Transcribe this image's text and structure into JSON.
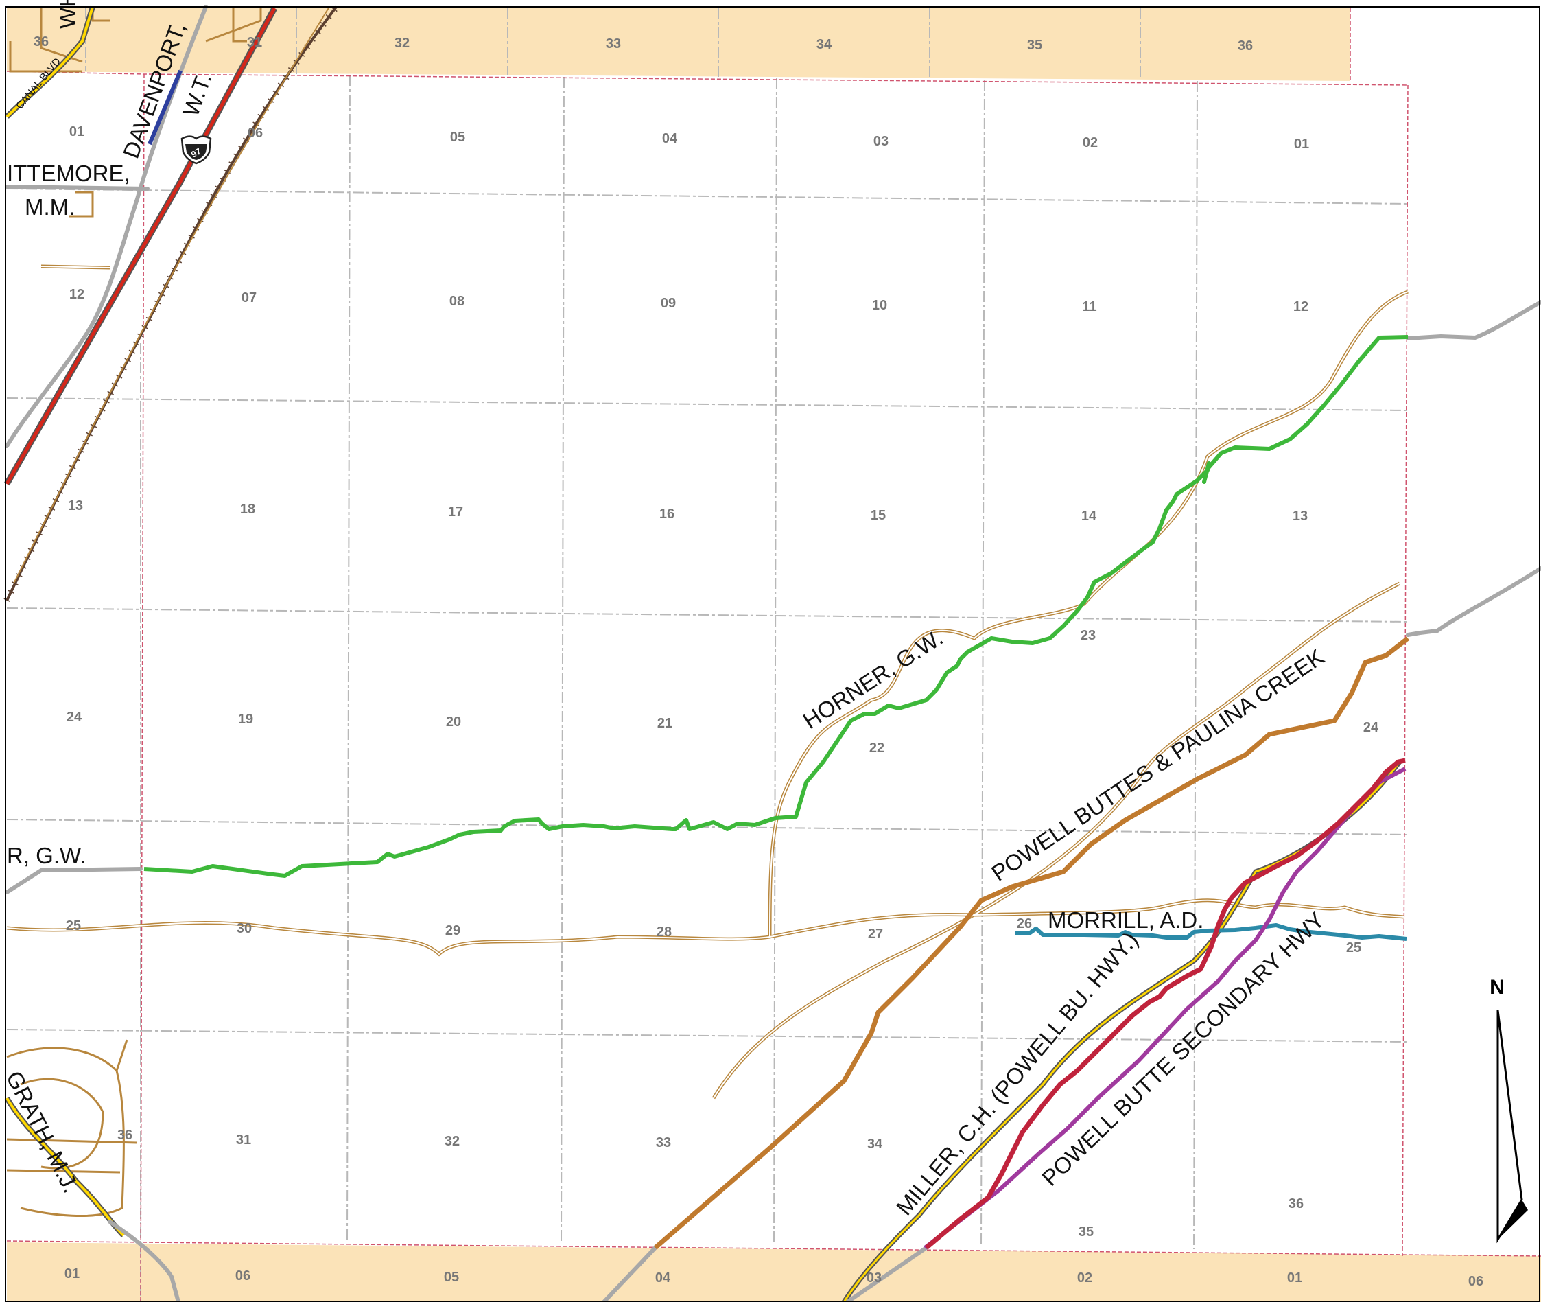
{
  "map": {
    "colors": {
      "township_band": "#fbe3b8",
      "grid_line": "#b8b8b8",
      "township_boundary": "#d0546e",
      "secondary_road": "#b8873e",
      "horner_route": "#3db83a",
      "powell_buttes_route": "#c07a2e",
      "morrill_route": "#2b8aa8",
      "miller_route": "#c0233c",
      "powell_butte_secondary_route": "#a03a9e",
      "highway_yellow": "#ffd800",
      "davenport_route": "#2d3f9e",
      "whittemore_route": "#a8a8a8",
      "railroad": "#5c4030",
      "highway_red": "#d4261a"
    },
    "sections": {
      "top_row": [
        "36",
        "31",
        "32",
        "33",
        "34",
        "35",
        "36"
      ],
      "row1": [
        "01",
        "06",
        "05",
        "04",
        "03",
        "02",
        "01"
      ],
      "row2": [
        "12",
        "07",
        "08",
        "09",
        "10",
        "11",
        "12"
      ],
      "row3": [
        "13",
        "18",
        "17",
        "16",
        "15",
        "14",
        "13"
      ],
      "row4": [
        "24",
        "19",
        "20",
        "21",
        "22",
        "23",
        "24"
      ],
      "row5": [
        "25",
        "30",
        "29",
        "28",
        "27",
        "26",
        "25"
      ],
      "row6": [
        "36",
        "31",
        "32",
        "33",
        "34",
        "35",
        "36"
      ],
      "bottom_row": [
        "01",
        "06",
        "05",
        "04",
        "03",
        "02",
        "01",
        "06"
      ]
    },
    "labels": {
      "horner": "HORNER, G.W.",
      "horner_left": "R, G.W.",
      "powell_buttes": "POWELL BUTTES & PAULINA CREEK",
      "morrill": "MORRILL, A.D.",
      "miller": "MILLER, C.H. (POWELL BU. HWY.)",
      "powell_butte_secondary": "POWELL BUTTE SECONDARY HWY",
      "davenport": "DAVENPORT,",
      "wt": "W.T.",
      "whittemore": "ITTEMORE,",
      "mm": "M.M.",
      "mcgrath": "GRATH, M.J.",
      "canal_blvd": "CANAL BLVD",
      "wh": "WH",
      "shield": "97",
      "north": "N"
    }
  }
}
